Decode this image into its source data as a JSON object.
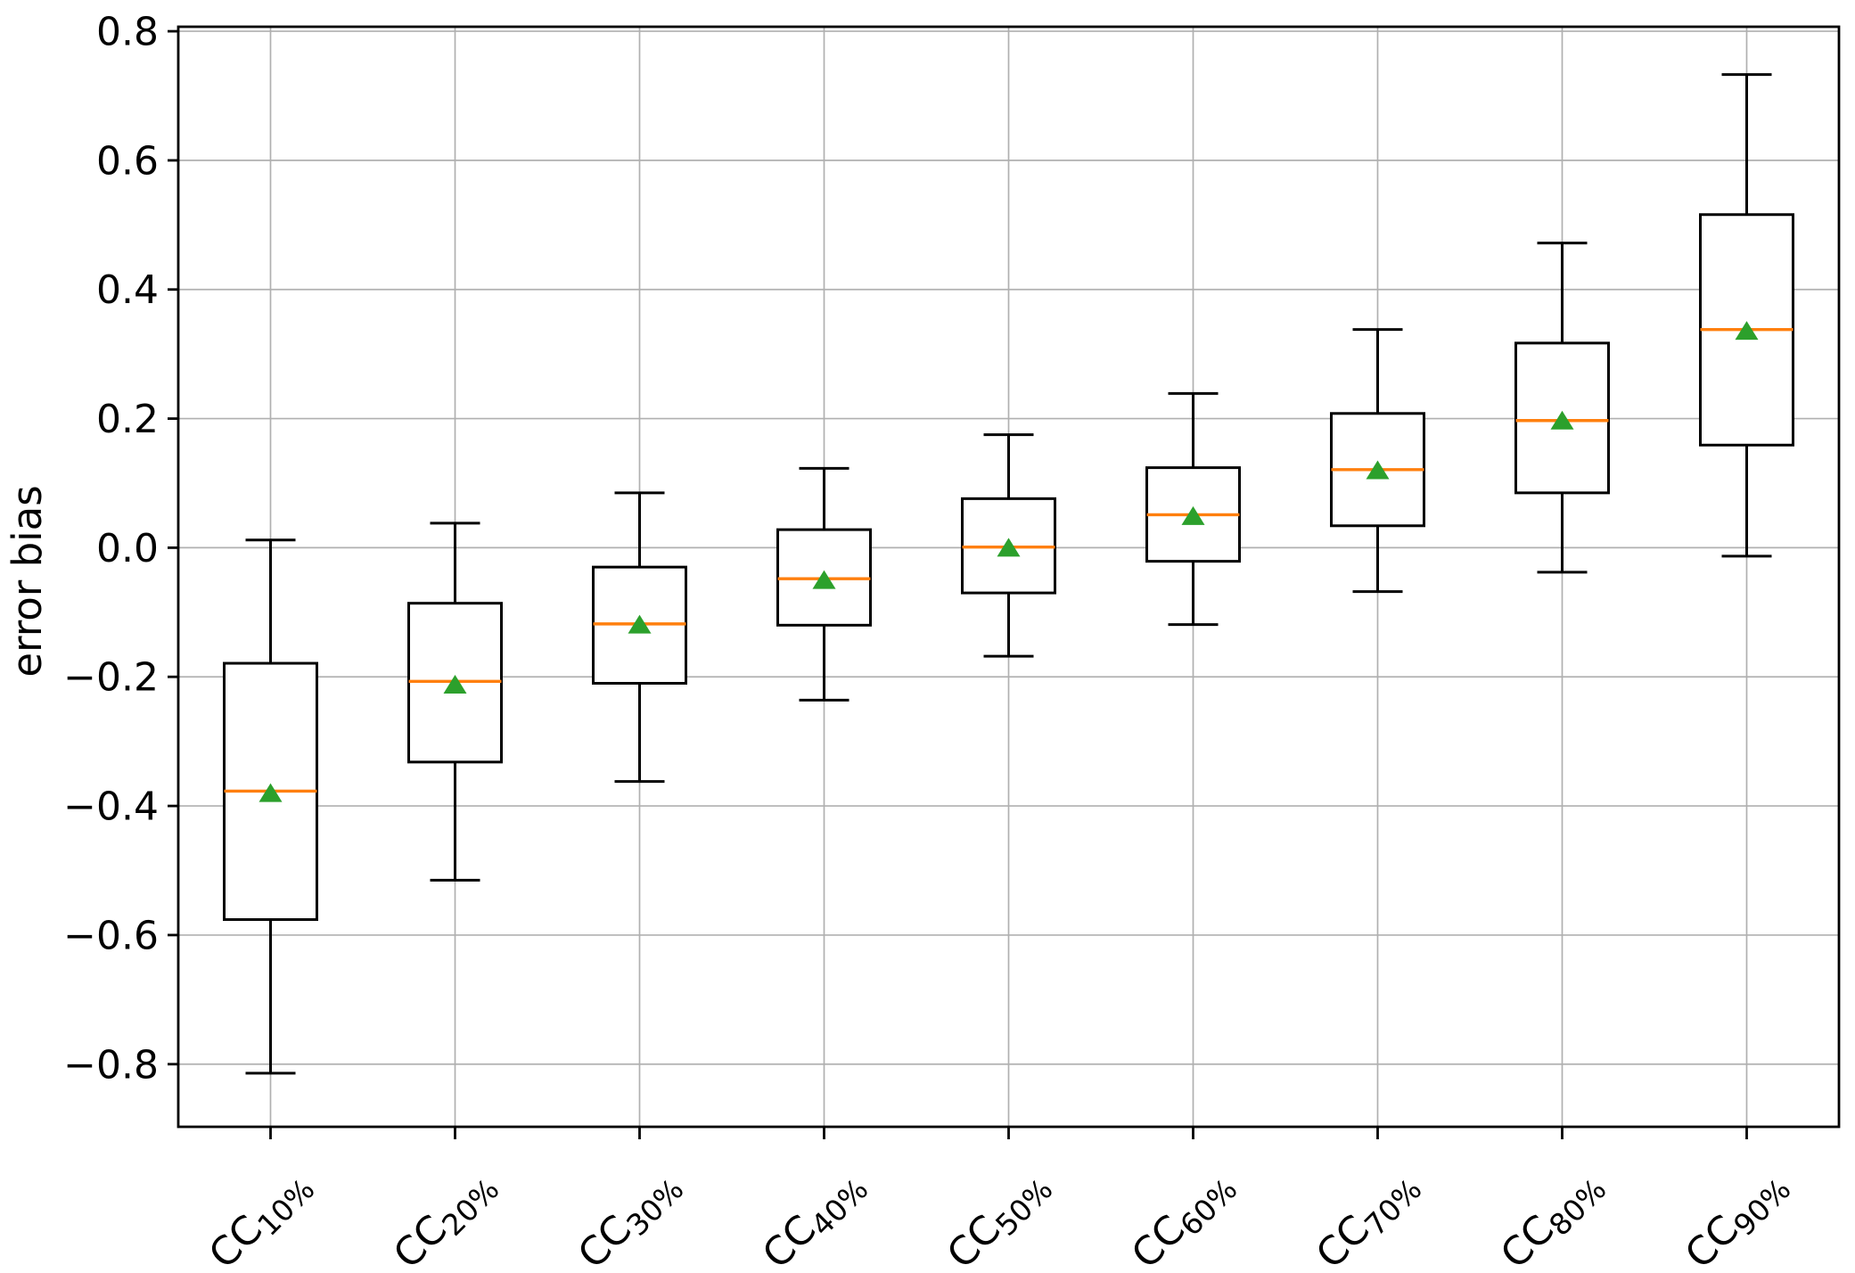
{
  "chart_data": {
    "type": "boxplot",
    "title": "",
    "xlabel": "",
    "ylabel": "error bias",
    "ylim": [
      -0.897,
      0.807
    ],
    "yticks": [
      0.8,
      0.6,
      0.4,
      0.2,
      0.0,
      -0.2,
      -0.4,
      -0.6,
      -0.8
    ],
    "ytick_labels": [
      "0.8",
      "0.6",
      "0.4",
      "0.2",
      "0.0",
      "−0.2",
      "−0.4",
      "−0.6",
      "−0.8"
    ],
    "grid": true,
    "legend": "none",
    "mean_marker": "triangle-up",
    "colors": {
      "median": "#ff7f0e",
      "mean": "#2ca02c",
      "box_edge": "#000000",
      "grid": "#b0b0b0",
      "background": "#ffffff",
      "text": "#000000"
    },
    "categories": [
      {
        "base": "CC",
        "sub": "10%"
      },
      {
        "base": "CC",
        "sub": "20%"
      },
      {
        "base": "CC",
        "sub": "30%"
      },
      {
        "base": "CC",
        "sub": "40%"
      },
      {
        "base": "CC",
        "sub": "50%"
      },
      {
        "base": "CC",
        "sub": "60%"
      },
      {
        "base": "CC",
        "sub": "70%"
      },
      {
        "base": "CC",
        "sub": "80%"
      },
      {
        "base": "CC",
        "sub": "90%"
      }
    ],
    "boxes": [
      {
        "label": "CC10%",
        "whislo": -0.814,
        "q1": -0.576,
        "med": -0.377,
        "mean": -0.38,
        "q3": -0.179,
        "whishi": 0.012
      },
      {
        "label": "CC20%",
        "whislo": -0.515,
        "q1": -0.332,
        "med": -0.207,
        "mean": -0.212,
        "q3": -0.086,
        "whishi": 0.038
      },
      {
        "label": "CC30%",
        "whislo": -0.362,
        "q1": -0.21,
        "med": -0.118,
        "mean": -0.119,
        "q3": -0.03,
        "whishi": 0.085
      },
      {
        "label": "CC40%",
        "whislo": -0.236,
        "q1": -0.12,
        "med": -0.048,
        "mean": -0.05,
        "q3": 0.028,
        "whishi": 0.123
      },
      {
        "label": "CC50%",
        "whislo": -0.168,
        "q1": -0.07,
        "med": 0.001,
        "mean": 0.0,
        "q3": 0.076,
        "whishi": 0.175
      },
      {
        "label": "CC60%",
        "whislo": -0.119,
        "q1": -0.021,
        "med": 0.051,
        "mean": 0.049,
        "q3": 0.124,
        "whishi": 0.239
      },
      {
        "label": "CC70%",
        "whislo": -0.068,
        "q1": 0.034,
        "med": 0.121,
        "mean": 0.12,
        "q3": 0.208,
        "whishi": 0.338
      },
      {
        "label": "CC80%",
        "whislo": -0.038,
        "q1": 0.085,
        "med": 0.197,
        "mean": 0.197,
        "q3": 0.317,
        "whishi": 0.472
      },
      {
        "label": "CC90%",
        "whislo": -0.013,
        "q1": 0.159,
        "med": 0.338,
        "mean": 0.336,
        "q3": 0.516,
        "whishi": 0.733
      }
    ]
  }
}
